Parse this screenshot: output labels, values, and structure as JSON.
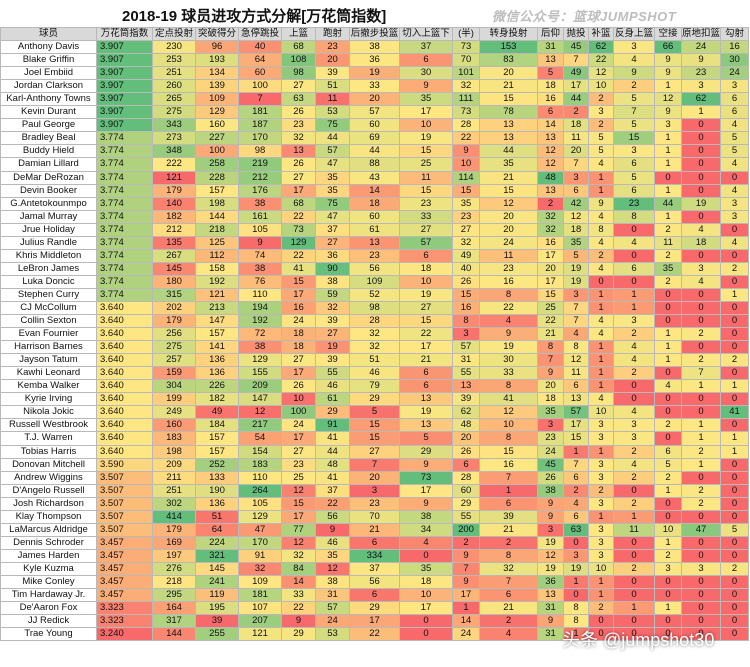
{
  "title": "2018-19 球员进攻方式分解[万花筒指数]",
  "watermark": "微信公众号：篮球JUMPSHOT",
  "bottom_watermark": "头条 @jumpshot30",
  "headers": [
    "球员",
    "万花筒指数",
    "定点投射",
    "突破得分",
    "急停跳投",
    "上篮",
    "跑射",
    "后撤步投篮",
    "切入上篮下",
    "(半)",
    "转身投射",
    "后仰",
    "抛投",
    "补篮",
    "反身上篮",
    "空接",
    "原地扣篮",
    "勾射"
  ],
  "colors": {
    "green": "#63be7b",
    "yellow": "#fee782",
    "red": "#f8696b"
  },
  "rows": [
    [
      "Anthony Davis",
      "3.907",
      "230",
      "96",
      "40",
      "68",
      "23",
      "38",
      "37",
      "73",
      "153",
      "31",
      "45",
      "62",
      "3",
      "66",
      "24",
      "16"
    ],
    [
      "Blake Griffin",
      "3.907",
      "253",
      "193",
      "64",
      "108",
      "20",
      "36",
      "6",
      "70",
      "83",
      "13",
      "7",
      "22",
      "4",
      "9",
      "9",
      "30"
    ],
    [
      "Joel Embiid",
      "3.907",
      "251",
      "134",
      "60",
      "98",
      "39",
      "19",
      "30",
      "101",
      "20",
      "5",
      "49",
      "12",
      "9",
      "9",
      "23",
      "24"
    ],
    [
      "Jordan Clarkson",
      "3.907",
      "260",
      "139",
      "100",
      "27",
      "51",
      "33",
      "9",
      "32",
      "21",
      "18",
      "17",
      "10",
      "2",
      "1",
      "3",
      "3"
    ],
    [
      "Karl-Anthony Towns",
      "3.907",
      "265",
      "109",
      "7",
      "63",
      "11",
      "20",
      "35",
      "111",
      "15",
      "16",
      "44",
      "2",
      "5",
      "12",
      "62",
      "6"
    ],
    [
      "Kevin Durant",
      "3.907",
      "275",
      "129",
      "181",
      "26",
      "53",
      "57",
      "17",
      "73",
      "78",
      "6",
      "2",
      "3",
      "7",
      "9",
      "1",
      "6"
    ],
    [
      "Paul George",
      "3.907",
      "343",
      "160",
      "187",
      "23",
      "75",
      "60",
      "10",
      "28",
      "13",
      "14",
      "18",
      "2",
      "5",
      "3",
      "0",
      "4"
    ],
    [
      "Bradley Beal",
      "3.774",
      "273",
      "227",
      "170",
      "32",
      "44",
      "69",
      "19",
      "22",
      "13",
      "13",
      "11",
      "5",
      "15",
      "1",
      "0",
      "5"
    ],
    [
      "Buddy Hield",
      "3.774",
      "348",
      "100",
      "98",
      "13",
      "57",
      "44",
      "15",
      "9",
      "44",
      "12",
      "20",
      "5",
      "3",
      "1",
      "0",
      "5"
    ],
    [
      "Damian Lillard",
      "3.774",
      "222",
      "258",
      "219",
      "26",
      "47",
      "88",
      "25",
      "10",
      "35",
      "12",
      "7",
      "4",
      "6",
      "1",
      "0",
      "4"
    ],
    [
      "DeMar DeRozan",
      "3.774",
      "121",
      "228",
      "212",
      "27",
      "35",
      "43",
      "11",
      "114",
      "21",
      "48",
      "3",
      "1",
      "5",
      "0",
      "0",
      "0"
    ],
    [
      "Devin Booker",
      "3.774",
      "179",
      "157",
      "176",
      "17",
      "35",
      "14",
      "15",
      "15",
      "15",
      "13",
      "6",
      "1",
      "6",
      "1",
      "0",
      "4"
    ],
    [
      "G.Antetokounmpo",
      "3.774",
      "140",
      "198",
      "38",
      "68",
      "75",
      "18",
      "23",
      "35",
      "12",
      "2",
      "42",
      "9",
      "23",
      "44",
      "19",
      "3"
    ],
    [
      "Jamal Murray",
      "3.774",
      "182",
      "144",
      "161",
      "22",
      "47",
      "60",
      "33",
      "23",
      "20",
      "32",
      "12",
      "4",
      "8",
      "1",
      "0",
      "3"
    ],
    [
      "Jrue Holiday",
      "3.774",
      "212",
      "218",
      "105",
      "73",
      "37",
      "61",
      "27",
      "27",
      "20",
      "32",
      "18",
      "8",
      "0",
      "2",
      "4",
      "0"
    ],
    [
      "Julius Randle",
      "3.774",
      "135",
      "125",
      "9",
      "129",
      "27",
      "13",
      "57",
      "32",
      "24",
      "16",
      "35",
      "4",
      "4",
      "11",
      "18",
      "4"
    ],
    [
      "Khris Middleton",
      "3.774",
      "267",
      "112",
      "74",
      "22",
      "36",
      "23",
      "6",
      "49",
      "11",
      "17",
      "5",
      "2",
      "0",
      "2",
      "0",
      "0"
    ],
    [
      "LeBron James",
      "3.774",
      "145",
      "158",
      "38",
      "41",
      "90",
      "56",
      "18",
      "40",
      "23",
      "20",
      "19",
      "4",
      "6",
      "35",
      "3",
      "2"
    ],
    [
      "Luka Doncic",
      "3.774",
      "180",
      "192",
      "76",
      "15",
      "38",
      "109",
      "10",
      "26",
      "16",
      "17",
      "19",
      "0",
      "0",
      "2",
      "4",
      "0"
    ],
    [
      "Stephen Curry",
      "3.774",
      "315",
      "121",
      "110",
      "17",
      "59",
      "52",
      "19",
      "15",
      "8",
      "15",
      "3",
      "1",
      "1",
      "0",
      "0",
      "1"
    ],
    [
      "CJ McCollum",
      "3.640",
      "202",
      "213",
      "194",
      "16",
      "32",
      "98",
      "27",
      "16",
      "22",
      "25",
      "7",
      "1",
      "1",
      "0",
      "0",
      "0"
    ],
    [
      "Collin Sexton",
      "3.640",
      "179",
      "147",
      "192",
      "24",
      "39",
      "28",
      "15",
      "8",
      "4",
      "22",
      "7",
      "4",
      "3",
      "0",
      "0",
      "0"
    ],
    [
      "Evan Fournier",
      "3.640",
      "256",
      "157",
      "72",
      "18",
      "27",
      "32",
      "22",
      "3",
      "9",
      "21",
      "4",
      "4",
      "2",
      "1",
      "2",
      "0"
    ],
    [
      "Harrison Barnes",
      "3.640",
      "275",
      "141",
      "38",
      "18",
      "19",
      "32",
      "17",
      "57",
      "19",
      "8",
      "8",
      "1",
      "4",
      "1",
      "0",
      "0"
    ],
    [
      "Jayson Tatum",
      "3.640",
      "257",
      "136",
      "129",
      "27",
      "39",
      "51",
      "21",
      "31",
      "30",
      "7",
      "12",
      "1",
      "4",
      "1",
      "2",
      "2"
    ],
    [
      "Kawhi Leonard",
      "3.640",
      "159",
      "136",
      "155",
      "17",
      "55",
      "46",
      "6",
      "55",
      "33",
      "9",
      "11",
      "1",
      "2",
      "0",
      "7",
      "0"
    ],
    [
      "Kemba Walker",
      "3.640",
      "304",
      "226",
      "209",
      "26",
      "46",
      "79",
      "6",
      "13",
      "8",
      "20",
      "6",
      "1",
      "0",
      "4",
      "1",
      "1"
    ],
    [
      "Kyrie Irving",
      "3.640",
      "199",
      "182",
      "147",
      "10",
      "61",
      "29",
      "13",
      "39",
      "41",
      "18",
      "13",
      "4",
      "0",
      "0",
      "0",
      "0"
    ],
    [
      "Nikola Jokic",
      "3.640",
      "249",
      "49",
      "12",
      "100",
      "29",
      "5",
      "19",
      "62",
      "12",
      "35",
      "57",
      "10",
      "4",
      "0",
      "0",
      "41"
    ],
    [
      "Russell Westbrook",
      "3.640",
      "160",
      "184",
      "217",
      "24",
      "91",
      "15",
      "13",
      "48",
      "10",
      "3",
      "17",
      "3",
      "3",
      "2",
      "1",
      "0"
    ],
    [
      "T.J. Warren",
      "3.640",
      "183",
      "157",
      "54",
      "17",
      "41",
      "15",
      "5",
      "20",
      "8",
      "23",
      "15",
      "3",
      "3",
      "0",
      "1",
      "1"
    ],
    [
      "Tobias Harris",
      "3.640",
      "198",
      "157",
      "154",
      "27",
      "44",
      "27",
      "29",
      "26",
      "15",
      "24",
      "1",
      "1",
      "2",
      "6",
      "2",
      "1"
    ],
    [
      "Donovan Mitchell",
      "3.590",
      "209",
      "252",
      "183",
      "23",
      "48",
      "7",
      "9",
      "6",
      "16",
      "45",
      "7",
      "3",
      "4",
      "5",
      "1",
      "0"
    ],
    [
      "Andrew Wiggins",
      "3.507",
      "211",
      "133",
      "110",
      "25",
      "41",
      "20",
      "73",
      "28",
      "7",
      "26",
      "6",
      "3",
      "2",
      "2",
      "0",
      "0"
    ],
    [
      "D'Angelo Russell",
      "3.507",
      "251",
      "190",
      "264",
      "12",
      "37",
      "3",
      "17",
      "60",
      "1",
      "38",
      "2",
      "2",
      "0",
      "1",
      "2",
      "0"
    ],
    [
      "Josh Richardson",
      "3.507",
      "302",
      "136",
      "105",
      "15",
      "22",
      "23",
      "9",
      "29",
      "6",
      "9",
      "4",
      "3",
      "2",
      "0",
      "2",
      "0"
    ],
    [
      "Klay Thompson",
      "3.507",
      "414",
      "51",
      "129",
      "17",
      "56",
      "70",
      "38",
      "55",
      "39",
      "9",
      "6",
      "1",
      "1",
      "0",
      "0",
      "0"
    ],
    [
      "LaMarcus Aldridge",
      "3.507",
      "179",
      "64",
      "47",
      "77",
      "9",
      "21",
      "34",
      "200",
      "21",
      "3",
      "63",
      "3",
      "11",
      "10",
      "47",
      "5"
    ],
    [
      "Dennis Schroder",
      "3.457",
      "169",
      "224",
      "170",
      "12",
      "46",
      "6",
      "4",
      "2",
      "2",
      "19",
      "0",
      "3",
      "0",
      "1",
      "0",
      "0"
    ],
    [
      "James Harden",
      "3.457",
      "197",
      "321",
      "91",
      "32",
      "35",
      "334",
      "0",
      "9",
      "8",
      "12",
      "3",
      "3",
      "0",
      "2",
      "0",
      "0"
    ],
    [
      "Kyle Kuzma",
      "3.457",
      "276",
      "145",
      "32",
      "84",
      "12",
      "37",
      "35",
      "7",
      "32",
      "19",
      "19",
      "10",
      "2",
      "3",
      "3",
      "2"
    ],
    [
      "Mike Conley",
      "3.457",
      "218",
      "241",
      "109",
      "14",
      "38",
      "56",
      "18",
      "9",
      "7",
      "36",
      "1",
      "1",
      "0",
      "0",
      "0",
      "0"
    ],
    [
      "Tim Hardaway Jr.",
      "3.457",
      "295",
      "119",
      "181",
      "33",
      "31",
      "6",
      "10",
      "17",
      "6",
      "13",
      "0",
      "1",
      "0",
      "0",
      "0",
      "0"
    ],
    [
      "De'Aaron Fox",
      "3.323",
      "164",
      "195",
      "107",
      "22",
      "57",
      "29",
      "17",
      "1",
      "21",
      "31",
      "8",
      "2",
      "1",
      "1",
      "0",
      "0"
    ],
    [
      "JJ Redick",
      "3.323",
      "317",
      "39",
      "207",
      "9",
      "24",
      "17",
      "0",
      "14",
      "2",
      "9",
      "8",
      "0",
      "0",
      "0",
      "0",
      "0"
    ],
    [
      "Trae Young",
      "3.240",
      "144",
      "255",
      "121",
      "29",
      "53",
      "22",
      "0",
      "24",
      "4",
      "31",
      "1",
      "0",
      "0",
      "0",
      "0",
      "0"
    ]
  ]
}
